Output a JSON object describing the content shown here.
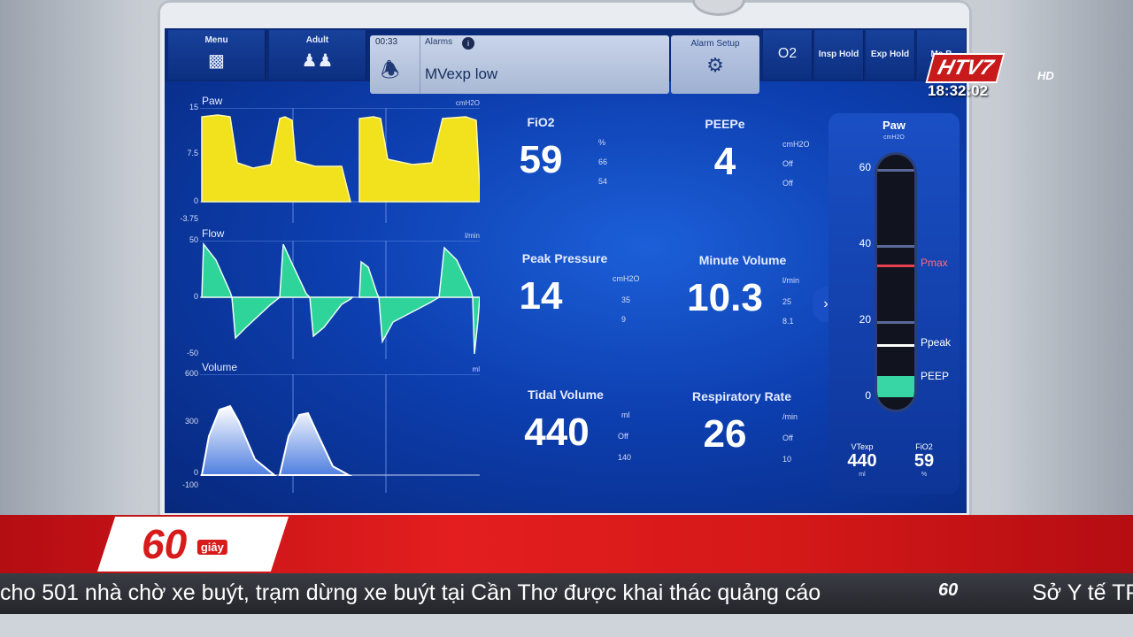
{
  "topbar": {
    "menu_label": "Menu",
    "adult_label": "Adult",
    "time": "00:33",
    "alarms_label": "Alarms",
    "alarm_message": "MVexp low",
    "alarm_setup_label": "Alarm Setup",
    "o2_label": "O2",
    "insp_hold_label": "Insp Hold",
    "exp_hold_label": "Exp Hold",
    "more_label": "Ma\nB"
  },
  "waveforms": [
    {
      "title": "Paw",
      "unit": "cmH2O",
      "ticks": [
        "15",
        "7.5",
        "0",
        "-3.75"
      ]
    },
    {
      "title": "Flow",
      "unit": "l/min",
      "ticks": [
        "50",
        "0",
        "-50"
      ]
    },
    {
      "title": "Volume",
      "unit": "ml",
      "ticks": [
        "600",
        "300",
        "0",
        "-100"
      ]
    }
  ],
  "params": {
    "fio2": {
      "name": "FiO2",
      "value": "59",
      "unit": "%",
      "hi": "66",
      "lo": "54"
    },
    "peep": {
      "name": "PEEPe",
      "value": "4",
      "unit": "cmH2O",
      "hi": "Off",
      "lo": "Off"
    },
    "peak": {
      "name": "Peak Pressure",
      "value": "14",
      "unit": "cmH2O",
      "hi": "35",
      "lo": "9"
    },
    "minute": {
      "name": "Minute Volume",
      "value": "10.3",
      "unit": "l/min",
      "hi": "25",
      "lo": "8.1"
    },
    "tidal": {
      "name": "Tidal Volume",
      "value": "440",
      "unit": "ml",
      "hi": "Off",
      "lo": "140"
    },
    "rr": {
      "name": "Respiratory Rate",
      "value": "26",
      "unit": "/min",
      "hi": "Off",
      "lo": "10"
    }
  },
  "paw_bar": {
    "title": "Paw",
    "unit": "cmH2O",
    "scale": [
      "60",
      "40",
      "20",
      "0"
    ],
    "pmax_label": "Pmax",
    "ppeak_label": "Ppeak",
    "peep_label": "PEEP",
    "vtexp_label": "VTexp",
    "vtexp_value": "440",
    "vtexp_unit": "ml",
    "fio2_label": "FiO2",
    "fio2_value": "59",
    "fio2_unit": "%"
  },
  "broadcast": {
    "channel": "HTV7",
    "hd": "HD",
    "clock": "18:32:02",
    "badge_number": "60",
    "badge_word": "giây",
    "ticker_text": "cho 501 nhà chờ xe buýt, trạm dừng xe buýt tại Cần Thơ được khai thác quảng cáo",
    "ticker_logo": "60",
    "ticker_next": "Sở Y tế TP"
  },
  "colors": {
    "screen_bg": "#0d3fb0",
    "paw_fill": "#f2e21e",
    "flow_fill": "#2fd49a",
    "pmax": "#e8404c",
    "peep": "#38d6a4",
    "news_red": "#d71a1a"
  }
}
